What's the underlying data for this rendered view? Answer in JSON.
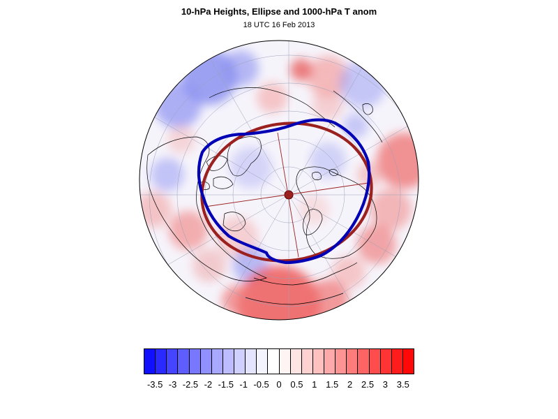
{
  "title": "10-hPa Heights, Ellipse and 1000-hPa T anom",
  "subtitle": "18 UTC 16 Feb 2013",
  "map": {
    "projection": "polar-stereographic",
    "pole": "north",
    "field": "1000-hPa T anom",
    "contour": "10-hPa Heights",
    "ellipse": "Ellipse",
    "colors": {
      "contour": "#0000b4",
      "ellipse": "#9b2020",
      "coastline": "#000000",
      "graticule": "#9aa0b8"
    }
  },
  "colorbar": {
    "labels": [
      "-3.5",
      "-3",
      "-2.5",
      "-2",
      "-1.5",
      "-1",
      "-0.5",
      "0",
      "0.5",
      "1",
      "1.5",
      "2",
      "2.5",
      "3",
      "3.5"
    ],
    "colors": [
      "#1010ff",
      "#2a2aff",
      "#4545ff",
      "#5e5eff",
      "#7878ff",
      "#9090ff",
      "#a8a8ff",
      "#bcbcff",
      "#d0d0ff",
      "#e4e4ff",
      "#f4f4ff",
      "#ffffff",
      "#fff4f4",
      "#ffe4e4",
      "#ffd2d2",
      "#ffc0c0",
      "#ffaaaa",
      "#ff9494",
      "#ff7c7c",
      "#ff6464",
      "#ff4c4c",
      "#ff3434",
      "#ff1c1c",
      "#ff0808"
    ]
  }
}
